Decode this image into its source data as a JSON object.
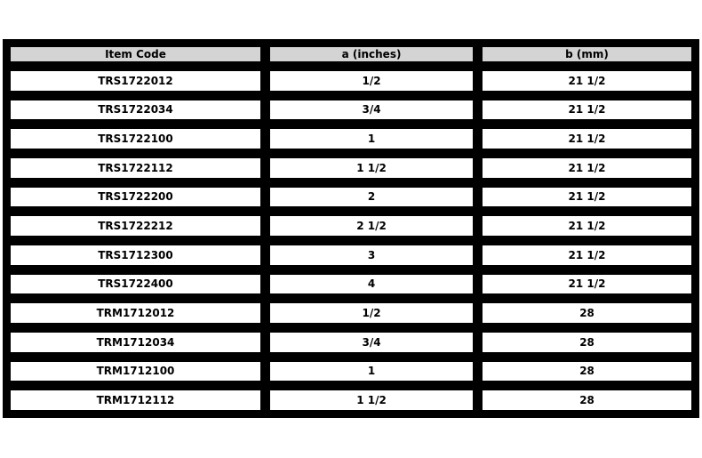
{
  "table": {
    "headers": [
      "Item Code",
      "a (inches)",
      "b (mm)"
    ],
    "rows": [
      [
        "TRS1722012",
        "1/2",
        "21 1/2"
      ],
      [
        "TRS1722034",
        "3/4",
        "21 1/2"
      ],
      [
        "TRS1722100",
        "1",
        "21 1/2"
      ],
      [
        "TRS1722112",
        "1 1/2",
        "21 1/2"
      ],
      [
        "TRS1722200",
        "2",
        "21 1/2"
      ],
      [
        "TRS1722212",
        "2 1/2",
        "21 1/2"
      ],
      [
        "TRS1712300",
        "3",
        "21 1/2"
      ],
      [
        "TRS1722400",
        "4",
        "21 1/2"
      ],
      [
        "TRM1712012",
        "1/2",
        "28"
      ],
      [
        "TRM1712034",
        "3/4",
        "28"
      ],
      [
        "TRM1712100",
        "1",
        "28"
      ],
      [
        "TRM1712112",
        "1 1/2",
        "28"
      ]
    ]
  },
  "colors": {
    "page_bg": "#ffffff",
    "frame": "#000000",
    "header_bg": "#d4d4d4",
    "cell_bg": "#ffffff",
    "text": "#000000"
  }
}
